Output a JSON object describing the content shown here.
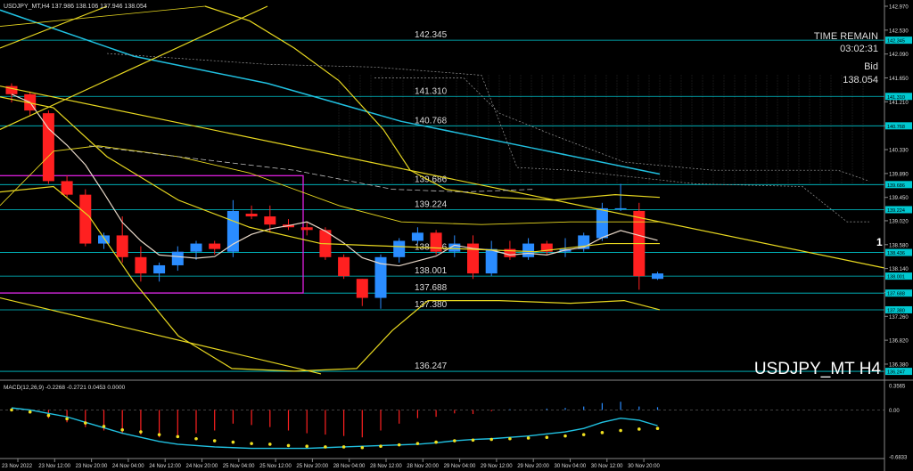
{
  "header": {
    "text": "USDJPY_MT,H4  137.986 138.106 137.946 138.054"
  },
  "watermark": "USDJPY_MT H4",
  "time_remain": {
    "label": "TIME REMAIN",
    "value": "03:02:31"
  },
  "bid": {
    "label": "Bid",
    "value": "138.054"
  },
  "edge_digit": "1",
  "macd_label": "MACD(12,26,9) -0.2268 -0.2721 0.0453 0.0000",
  "price_axis": {
    "min": 136.15,
    "max": 142.97,
    "ticks": [
      "142.970",
      "142.530",
      "142.090",
      "141.650",
      "141.210",
      "140.770",
      "140.330",
      "139.890",
      "139.450",
      "139.020",
      "138.580",
      "138.140",
      "137.700",
      "137.260",
      "136.820",
      "136.380"
    ],
    "tick_values": [
      142.97,
      142.53,
      142.09,
      141.65,
      141.21,
      140.77,
      140.33,
      139.89,
      139.45,
      139.02,
      138.58,
      138.14,
      137.7,
      137.26,
      136.82,
      136.38
    ]
  },
  "macd_axis": {
    "min": -0.6833,
    "max": 0.3565,
    "labels": [
      "0.3565",
      "0.00",
      "-0.6833"
    ],
    "label_values": [
      0.3565,
      0.0,
      -0.6833
    ]
  },
  "levels": [
    {
      "label": "142.345",
      "value": 142.345
    },
    {
      "label": "141.310",
      "value": 141.31
    },
    {
      "label": "140.768",
      "value": 140.768
    },
    {
      "label": "139.686",
      "value": 139.686
    },
    {
      "label": "139.224",
      "value": 139.224
    },
    {
      "label": "138.436",
      "value": 138.436
    },
    {
      "label": "138.001",
      "value": 138.001
    },
    {
      "label": "137.688",
      "value": 137.688
    },
    {
      "label": "137.380",
      "value": 137.38
    },
    {
      "label": "136.247",
      "value": 136.247
    }
  ],
  "level_color": "#00c8d0",
  "bull_color": "#2a8cff",
  "bear_color": "#ff2020",
  "box_color": "#e020e0",
  "time_axis": [
    "23 Nov 2022",
    "23 Nov 12:00",
    "23 Nov 20:00",
    "24 Nov 04:00",
    "24 Nov 12:00",
    "24 Nov 20:00",
    "25 Nov 04:00",
    "25 Nov 12:00",
    "25 Nov 20:00",
    "28 Nov 04:00",
    "28 Nov 12:00",
    "28 Nov 20:00",
    "29 Nov 04:00",
    "29 Nov 12:00",
    "29 Nov 20:00",
    "30 Nov 04:00",
    "30 Nov 12:00",
    "30 Nov 20:00"
  ],
  "candles": [
    {
      "o": 141.5,
      "h": 141.55,
      "l": 141.2,
      "c": 141.35
    },
    {
      "o": 141.35,
      "h": 141.4,
      "l": 140.95,
      "c": 141.05
    },
    {
      "o": 141.0,
      "h": 141.05,
      "l": 139.7,
      "c": 139.75
    },
    {
      "o": 139.75,
      "h": 139.85,
      "l": 139.45,
      "c": 139.5
    },
    {
      "o": 139.5,
      "h": 139.6,
      "l": 138.55,
      "c": 138.6
    },
    {
      "o": 138.6,
      "h": 138.8,
      "l": 138.5,
      "c": 138.75
    },
    {
      "o": 138.75,
      "h": 139.1,
      "l": 138.25,
      "c": 138.35
    },
    {
      "o": 138.35,
      "h": 138.55,
      "l": 137.9,
      "c": 138.05
    },
    {
      "o": 138.05,
      "h": 138.25,
      "l": 137.9,
      "c": 138.2
    },
    {
      "o": 138.2,
      "h": 138.55,
      "l": 138.1,
      "c": 138.45
    },
    {
      "o": 138.45,
      "h": 138.65,
      "l": 138.3,
      "c": 138.6
    },
    {
      "o": 138.6,
      "h": 138.65,
      "l": 138.4,
      "c": 138.5
    },
    {
      "o": 138.45,
      "h": 139.4,
      "l": 138.35,
      "c": 139.2
    },
    {
      "o": 139.15,
      "h": 139.3,
      "l": 139.05,
      "c": 139.1
    },
    {
      "o": 139.1,
      "h": 139.3,
      "l": 138.8,
      "c": 138.95
    },
    {
      "o": 138.95,
      "h": 139.05,
      "l": 138.85,
      "c": 138.9
    },
    {
      "o": 138.9,
      "h": 139.0,
      "l": 138.75,
      "c": 138.85
    },
    {
      "o": 138.85,
      "h": 138.9,
      "l": 138.3,
      "c": 138.35
    },
    {
      "o": 138.35,
      "h": 138.4,
      "l": 137.95,
      "c": 138.0
    },
    {
      "o": 137.95,
      "h": 137.95,
      "l": 137.45,
      "c": 137.6
    },
    {
      "o": 137.6,
      "h": 138.4,
      "l": 137.4,
      "c": 138.35
    },
    {
      "o": 138.35,
      "h": 138.7,
      "l": 138.25,
      "c": 138.65
    },
    {
      "o": 138.65,
      "h": 138.9,
      "l": 138.6,
      "c": 138.8
    },
    {
      "o": 138.8,
      "h": 138.85,
      "l": 138.4,
      "c": 138.45
    },
    {
      "o": 138.45,
      "h": 138.75,
      "l": 138.35,
      "c": 138.6
    },
    {
      "o": 138.6,
      "h": 138.75,
      "l": 137.95,
      "c": 138.05
    },
    {
      "o": 138.05,
      "h": 138.65,
      "l": 138.0,
      "c": 138.5
    },
    {
      "o": 138.5,
      "h": 138.65,
      "l": 138.3,
      "c": 138.35
    },
    {
      "o": 138.35,
      "h": 138.7,
      "l": 138.3,
      "c": 138.6
    },
    {
      "o": 138.6,
      "h": 138.65,
      "l": 138.4,
      "c": 138.45
    },
    {
      "o": 138.45,
      "h": 138.7,
      "l": 138.35,
      "c": 138.5
    },
    {
      "o": 138.5,
      "h": 138.8,
      "l": 138.45,
      "c": 138.75
    },
    {
      "o": 138.7,
      "h": 139.35,
      "l": 138.65,
      "c": 139.25
    },
    {
      "o": 139.25,
      "h": 139.7,
      "l": 139.2,
      "c": 139.25
    },
    {
      "o": 139.2,
      "h": 139.35,
      "l": 137.75,
      "c": 138.0
    },
    {
      "o": 137.95,
      "h": 138.08,
      "l": 137.93,
      "c": 138.05
    }
  ],
  "macd": {
    "hist": [
      0.02,
      -0.05,
      -0.12,
      -0.18,
      -0.25,
      -0.3,
      -0.35,
      -0.36,
      -0.4,
      -0.38,
      -0.34,
      -0.3,
      -0.2,
      -0.22,
      -0.25,
      -0.3,
      -0.34,
      -0.36,
      -0.38,
      -0.4,
      -0.3,
      -0.2,
      -0.12,
      -0.1,
      -0.05,
      -0.06,
      -0.02,
      0.01,
      0.0,
      0.02,
      0.03,
      0.05,
      0.1,
      0.12,
      0.05,
      0.04
    ],
    "signal": [
      0.0,
      -0.03,
      -0.08,
      -0.13,
      -0.19,
      -0.24,
      -0.29,
      -0.32,
      -0.36,
      -0.39,
      -0.42,
      -0.45,
      -0.47,
      -0.49,
      -0.5,
      -0.52,
      -0.53,
      -0.54,
      -0.54,
      -0.55,
      -0.53,
      -0.51,
      -0.49,
      -0.47,
      -0.45,
      -0.44,
      -0.43,
      -0.42,
      -0.41,
      -0.4,
      -0.38,
      -0.36,
      -0.33,
      -0.3,
      -0.28,
      -0.27
    ],
    "main": [
      0.03,
      0.0,
      -0.05,
      -0.1,
      -0.18,
      -0.26,
      -0.34,
      -0.4,
      -0.46,
      -0.5,
      -0.52,
      -0.54,
      -0.55,
      -0.56,
      -0.56,
      -0.56,
      -0.56,
      -0.55,
      -0.54,
      -0.53,
      -0.52,
      -0.51,
      -0.5,
      -0.48,
      -0.45,
      -0.43,
      -0.42,
      -0.4,
      -0.38,
      -0.35,
      -0.32,
      -0.27,
      -0.18,
      -0.12,
      -0.15,
      -0.23
    ]
  }
}
